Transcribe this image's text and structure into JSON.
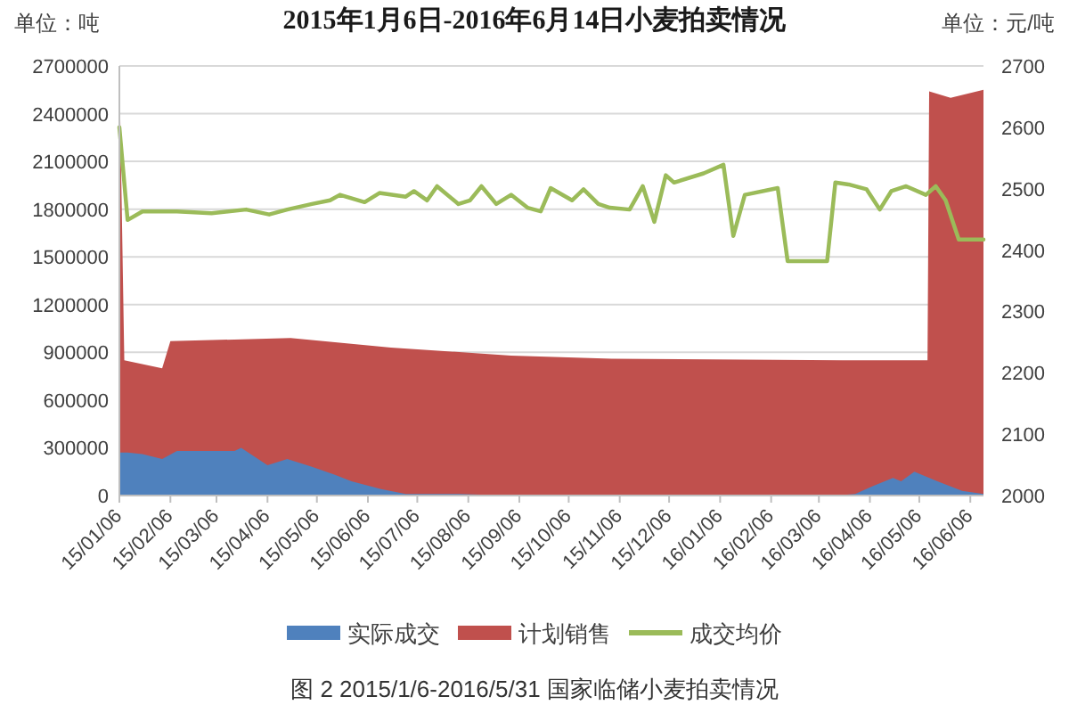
{
  "chart_data": {
    "type": "area",
    "title": "2015年1月6日-2016年6月14日小麦拍卖情况",
    "ylabel": "单位：吨",
    "y2label": "单位：元/吨",
    "annotations": [
      "图 2 2015/1/6-2016/5/31 国家临储小麦拍卖情况"
    ],
    "series": [
      {
        "name": "实际成交",
        "color": "#4f81bd",
        "x": [
          "2015-01-06",
          "2015-01-11",
          "2015-01-20",
          "2015-02-01",
          "2015-02-10",
          "2015-03-03",
          "2015-03-17",
          "2015-03-21",
          "2015-04-06",
          "2015-04-18",
          "2015-05-03",
          "2015-05-17",
          "2015-05-27",
          "2015-06-14",
          "2015-06-29",
          "2015-07-31",
          "2015-09-01",
          "2015-12-01",
          "2016-03-16",
          "2016-03-28",
          "2016-04-08",
          "2016-04-20",
          "2016-04-25",
          "2016-05-03",
          "2016-05-17",
          "2016-06-01",
          "2016-06-14"
        ],
        "values": [
          270000,
          270000,
          260000,
          230000,
          280000,
          280000,
          280000,
          300000,
          190000,
          230000,
          180000,
          130000,
          90000,
          40000,
          10000,
          10000,
          0,
          0,
          0,
          10000,
          60000,
          110000,
          90000,
          150000,
          90000,
          30000,
          10000
        ]
      },
      {
        "name": "计划销售",
        "color": "#c0504d",
        "x": [
          "2015-01-06",
          "2015-01-09",
          "2015-02-01",
          "2015-02-06",
          "2015-04-20",
          "2015-06-20",
          "2015-09-01",
          "2015-11-01",
          "2016-03-20",
          "2016-05-11",
          "2016-05-12",
          "2016-05-25",
          "2016-06-14"
        ],
        "values": [
          2700000,
          850000,
          800000,
          970000,
          990000,
          930000,
          880000,
          860000,
          850000,
          850000,
          2540000,
          2500000,
          2550000
        ]
      },
      {
        "name": "成交均价",
        "type": "line",
        "axis": "y2",
        "color": "#9bbb59",
        "x": [
          "2015-01-06",
          "2015-01-11",
          "2015-01-20",
          "2015-02-10",
          "2015-03-03",
          "2015-03-24",
          "2015-04-07",
          "2015-04-18",
          "2015-05-03",
          "2015-05-14",
          "2015-05-20",
          "2015-06-04",
          "2015-06-13",
          "2015-06-29",
          "2015-07-04",
          "2015-07-12",
          "2015-07-18",
          "2015-07-31",
          "2015-08-07",
          "2015-08-14",
          "2015-08-23",
          "2015-09-01",
          "2015-09-11",
          "2015-09-19",
          "2015-09-25",
          "2015-10-08",
          "2015-10-15",
          "2015-10-24",
          "2015-10-31",
          "2015-11-12",
          "2015-11-20",
          "2015-11-27",
          "2015-12-04",
          "2015-12-09",
          "2015-12-27",
          "2016-01-08",
          "2016-01-14",
          "2016-01-21",
          "2016-02-10",
          "2016-02-16",
          "2016-03-11",
          "2016-03-16",
          "2016-03-24",
          "2016-04-04",
          "2016-04-12",
          "2016-04-19",
          "2016-04-28",
          "2016-05-10",
          "2016-05-16",
          "2016-05-22",
          "2016-05-30",
          "2016-06-14"
        ],
        "values": [
          2600,
          2449,
          2463,
          2463,
          2460,
          2466,
          2458,
          2466,
          2475,
          2481,
          2490,
          2478,
          2493,
          2487,
          2496,
          2481,
          2504,
          2475,
          2481,
          2504,
          2475,
          2490,
          2469,
          2463,
          2501,
          2481,
          2499,
          2475,
          2469,
          2466,
          2504,
          2446,
          2522,
          2510,
          2525,
          2539,
          2423,
          2490,
          2501,
          2382,
          2382,
          2510,
          2507,
          2499,
          2466,
          2496,
          2504,
          2490,
          2504,
          2481,
          2417,
          2417
        ]
      }
    ],
    "xlim": [
      "2015-01-06",
      "2016-06-14"
    ],
    "xticks": [
      {
        "value": "2015-01-06",
        "label": "15/01/06"
      },
      {
        "value": "2015-02-06",
        "label": "15/02/06"
      },
      {
        "value": "2015-03-06",
        "label": "15/03/06"
      },
      {
        "value": "2015-04-06",
        "label": "15/04/06"
      },
      {
        "value": "2015-05-06",
        "label": "15/05/06"
      },
      {
        "value": "2015-06-06",
        "label": "15/06/06"
      },
      {
        "value": "2015-07-06",
        "label": "15/07/06"
      },
      {
        "value": "2015-08-06",
        "label": "15/08/06"
      },
      {
        "value": "2015-09-06",
        "label": "15/09/06"
      },
      {
        "value": "2015-10-06",
        "label": "15/10/06"
      },
      {
        "value": "2015-11-06",
        "label": "15/11/06"
      },
      {
        "value": "2015-12-06",
        "label": "15/12/06"
      },
      {
        "value": "2016-01-06",
        "label": "16/01/06"
      },
      {
        "value": "2016-02-06",
        "label": "16/02/06"
      },
      {
        "value": "2016-03-06",
        "label": "16/03/06"
      },
      {
        "value": "2016-04-06",
        "label": "16/04/06"
      },
      {
        "value": "2016-05-06",
        "label": "16/05/06"
      },
      {
        "value": "2016-06-06",
        "label": "16/06/06"
      }
    ],
    "ylim": [
      0,
      2700000
    ],
    "yticks": [
      0,
      300000,
      600000,
      900000,
      1200000,
      1500000,
      1800000,
      2100000,
      2400000,
      2700000
    ],
    "y2lim": [
      2000,
      2700
    ],
    "y2ticks": [
      2000,
      2100,
      2200,
      2300,
      2400,
      2500,
      2600,
      2700
    ],
    "grid": "y",
    "legend": "bottom"
  }
}
